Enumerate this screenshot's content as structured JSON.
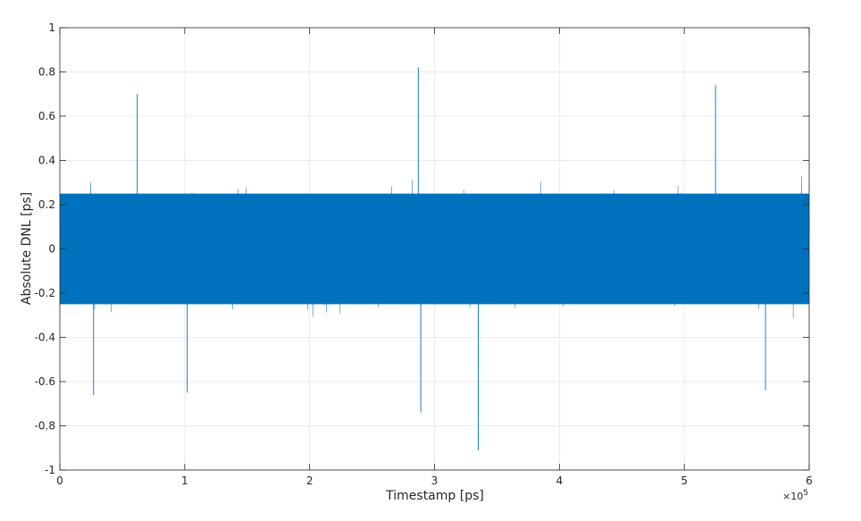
{
  "chart_data": {
    "type": "line",
    "title": "",
    "xlabel": "Timestamp [ps]",
    "ylabel": "Absolute DNL [ps]",
    "xlim": [
      0,
      600000
    ],
    "ylim": [
      -1,
      1
    ],
    "x_ticks": [
      0,
      100000,
      200000,
      300000,
      400000,
      500000,
      600000
    ],
    "x_tick_labels": [
      "0",
      "1",
      "2",
      "3",
      "4",
      "5",
      "6"
    ],
    "x_exponent_label": {
      "base": "×10",
      "exp": "5"
    },
    "y_ticks": [
      -1,
      -0.8,
      -0.6,
      -0.4,
      -0.2,
      0,
      0.2,
      0.4,
      0.6,
      0.8,
      1
    ],
    "y_tick_labels": [
      "-1",
      "-0.8",
      "-0.6",
      "-0.4",
      "-0.2",
      "0",
      "0.2",
      "0.4",
      "0.6",
      "0.8",
      "1"
    ],
    "grid": true,
    "series": [
      {
        "color": "#0072BD",
        "style": "dense noise trace",
        "mean": 0,
        "core_range": [
          -0.25,
          0.25
        ],
        "typical_envelope": [
          -0.5,
          0.5
        ],
        "peaks": [
          {
            "x": 287000,
            "y": 0.82
          },
          {
            "x": 335000,
            "y": -0.91
          },
          {
            "x": 289000,
            "y": -0.74
          },
          {
            "x": 525000,
            "y": 0.74
          },
          {
            "x": 27000,
            "y": -0.66
          },
          {
            "x": 102000,
            "y": -0.65
          },
          {
            "x": 565000,
            "y": -0.64
          },
          {
            "x": 62000,
            "y": 0.7
          }
        ]
      }
    ]
  }
}
